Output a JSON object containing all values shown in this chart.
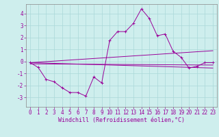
{
  "x": [
    0,
    1,
    2,
    3,
    4,
    5,
    6,
    7,
    8,
    9,
    10,
    11,
    12,
    13,
    14,
    15,
    16,
    17,
    18,
    19,
    20,
    21,
    22,
    23
  ],
  "line_main": [
    -0.1,
    -0.5,
    -1.5,
    -1.7,
    -2.2,
    -2.6,
    -2.6,
    -2.9,
    -1.3,
    -1.8,
    1.75,
    2.5,
    2.5,
    3.2,
    4.4,
    3.6,
    2.15,
    2.3,
    0.85,
    0.35,
    -0.55,
    -0.4,
    -0.1,
    -0.1
  ],
  "trend1_x": [
    0,
    23
  ],
  "trend1_y": [
    -0.1,
    0.9
  ],
  "trend2_x": [
    0,
    23
  ],
  "trend2_y": [
    -0.2,
    -0.3
  ],
  "trend3_x": [
    0,
    23
  ],
  "trend3_y": [
    -0.1,
    -0.55
  ],
  "line_color": "#990099",
  "background_color": "#ceeeed",
  "grid_color": "#aad8d8",
  "xlabel": "Windchill (Refroidissement éolien,°C)",
  "xlabel_color": "#990099",
  "xlabel_fontsize": 6,
  "tick_color": "#990099",
  "tick_fontsize": 5.5,
  "ylim": [
    -3.8,
    4.8
  ],
  "xlim": [
    -0.5,
    23.5
  ],
  "yticks": [
    -3,
    -2,
    -1,
    0,
    1,
    2,
    3,
    4
  ],
  "xticks": [
    0,
    1,
    2,
    3,
    4,
    5,
    6,
    7,
    8,
    9,
    10,
    11,
    12,
    13,
    14,
    15,
    16,
    17,
    18,
    19,
    20,
    21,
    22,
    23
  ]
}
